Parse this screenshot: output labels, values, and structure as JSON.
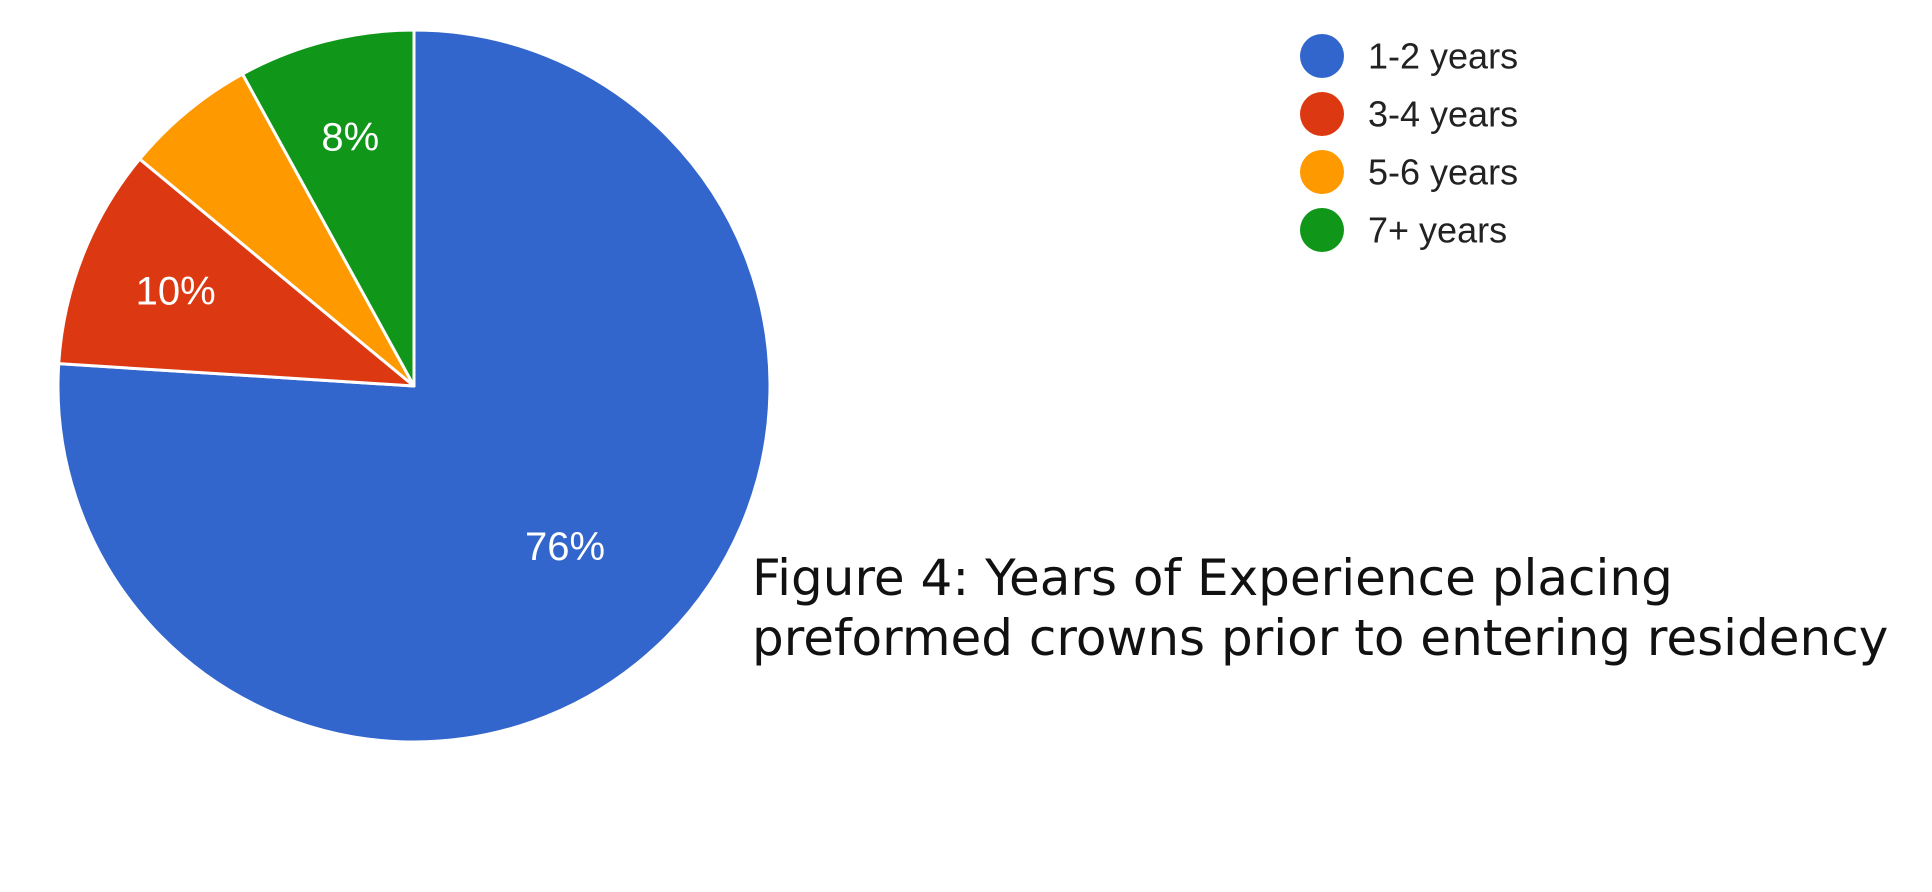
{
  "chart_data": {
    "type": "pie",
    "categories": [
      "1-2 years",
      "3-4 years",
      "5-6 years",
      "7+ years"
    ],
    "values": [
      76,
      10,
      6,
      8
    ],
    "colors": [
      "#3366cc",
      "#dc3912",
      "#ff9900",
      "#109618"
    ],
    "data_labels": [
      "76%",
      "10%",
      "",
      "8%"
    ],
    "legend": [
      "1-2 years",
      "3-4 years",
      "5-6 years",
      "7+ years"
    ],
    "legend_placement": "top-right"
  },
  "caption": {
    "text": "Figure 4: Years of Experience placing preformed crowns prior to entering residency"
  }
}
